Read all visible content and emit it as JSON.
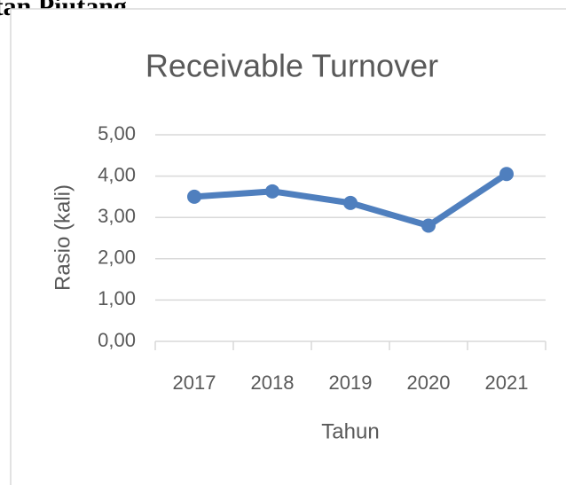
{
  "page_heading": "antan Piutang",
  "chart_data": {
    "type": "line",
    "title": "Receivable Turnover",
    "x_label": "Tahun",
    "y_label": "Rasio (kali)",
    "categories": [
      "2017",
      "2018",
      "2019",
      "2020",
      "2021"
    ],
    "series": [
      {
        "name": "Receivable Turnover",
        "color": "#4f7fbe",
        "values": [
          3.5,
          3.63,
          3.35,
          2.8,
          4.05
        ]
      }
    ],
    "ylim": [
      0,
      5
    ],
    "yticks": [
      {
        "value": 0,
        "label": "0,00"
      },
      {
        "value": 1,
        "label": "1,00"
      },
      {
        "value": 2,
        "label": "2,00"
      },
      {
        "value": 3,
        "label": "3,00"
      },
      {
        "value": 4,
        "label": "4,00"
      },
      {
        "value": 5,
        "label": "5,00"
      }
    ],
    "grid": true
  }
}
